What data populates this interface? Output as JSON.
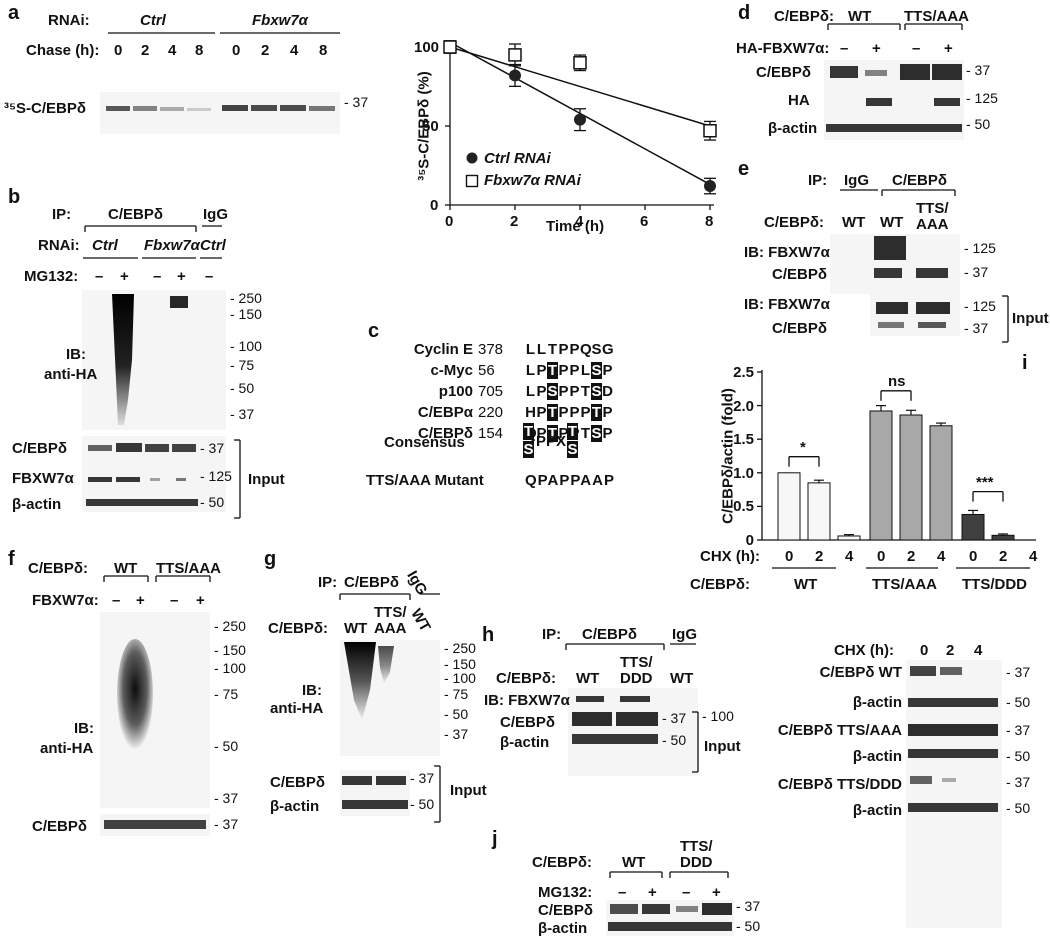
{
  "panel_a": {
    "label": "a",
    "rnai_label": "RNAi:",
    "ctrl": "Ctrl",
    "fbx": "Fbxw7α",
    "chase_label": "Chase (h):",
    "chase_times": [
      "0",
      "2",
      "4",
      "8",
      "0",
      "2",
      "4",
      "8"
    ],
    "row_label": "³⁵S-C/EBPδ",
    "mw": "- 37"
  },
  "chart_data": {
    "type": "line",
    "xlabel": "Time (h)",
    "ylabel": "³⁵S-C/EBPδ (%)",
    "xlim": [
      0,
      8
    ],
    "ylim": [
      0,
      100
    ],
    "x_ticks": [
      "0",
      "2",
      "4",
      "6",
      "8"
    ],
    "y_ticks": [
      "0",
      "50",
      "100"
    ],
    "legend": "bottom-right",
    "series": [
      {
        "name": "Ctrl RNAi",
        "marker": "filled-circle",
        "x": [
          0,
          2,
          4,
          8
        ],
        "y": [
          100,
          82,
          54,
          12
        ],
        "err": [
          2,
          5,
          5,
          3
        ]
      },
      {
        "name": "Fbxw7α RNAi",
        "marker": "open-square",
        "x": [
          0,
          2,
          4,
          8
        ],
        "y": [
          100,
          95,
          90,
          47
        ],
        "err": [
          2,
          5,
          3,
          4
        ]
      }
    ],
    "fit_lines": [
      {
        "series": "Ctrl RNAi",
        "from": [
          0,
          103
        ],
        "to": [
          8,
          13
        ]
      },
      {
        "series": "Fbxw7α RNAi",
        "from": [
          0,
          100
        ],
        "to": [
          8,
          50
        ]
      }
    ]
  },
  "panel_b": {
    "label": "b",
    "ip_label": "IP:",
    "ip_cebpd": "C/EBPδ",
    "ip_igg": "IgG",
    "rnai_label": "RNAi:",
    "ctrl": "Ctrl",
    "fbx": "Fbxw7α",
    "ctrl2": "Ctrl",
    "mg_label": "MG132:",
    "signs": [
      "–",
      "+",
      "–",
      "+",
      "–"
    ],
    "ib_label1": "IB:",
    "ib_label2": "anti-HA",
    "mws": [
      "- 250",
      "- 150",
      "- 100",
      "- 75",
      "- 50",
      "- 37"
    ],
    "input_rows": [
      "C/EBPδ",
      "FBXW7α",
      "β-actin"
    ],
    "input_mws": [
      "- 37",
      "- 125",
      "- 50"
    ],
    "input_label": "Input"
  },
  "panel_c": {
    "label": "c",
    "rows": [
      {
        "name": "Cyclin E",
        "pos": "378",
        "seq": [
          "L",
          "L",
          "T",
          "P",
          "P",
          "Q",
          "S",
          "G"
        ],
        "boxed": []
      },
      {
        "name": "c-Myc",
        "pos": "56",
        "seq": [
          "L",
          "P",
          "T",
          "P",
          "P",
          "L",
          "S",
          "P"
        ],
        "boxed": [
          2,
          6
        ]
      },
      {
        "name": "p100",
        "pos": "705",
        "seq": [
          "L",
          "P",
          "S",
          "P",
          "P",
          "T",
          "S",
          "D"
        ],
        "boxed": [
          2,
          6
        ]
      },
      {
        "name": "C/EBPα",
        "pos": "220",
        "seq": [
          "H",
          "P",
          "T",
          "P",
          "P",
          "P",
          "T",
          "P"
        ],
        "boxed": [
          2,
          6
        ]
      },
      {
        "name": "C/EBPδ",
        "pos": "154",
        "seq": [
          "Q",
          "P",
          "T",
          "P",
          "P",
          "T",
          "S",
          "P"
        ],
        "boxed": [
          2,
          6
        ]
      }
    ],
    "consensus_label": "Consensus",
    "consensus_top": [
      "T",
      "T"
    ],
    "consensus_bottom": [
      "S",
      "S"
    ],
    "consensus_mid": "PPX",
    "mutant_label": "TTS/AAA Mutant",
    "mutant_seq": "QPAPPAAP"
  },
  "panel_d": {
    "label": "d",
    "cebpd_label": "C/EBPδ:",
    "wt": "WT",
    "tts": "TTS/AAA",
    "ha_label": "HA-FBXW7α:",
    "signs": [
      "–",
      "+",
      "–",
      "+"
    ],
    "rows": [
      "C/EBPδ",
      "HA",
      "β-actin"
    ],
    "mws": [
      "- 37",
      "- 125",
      "- 50"
    ]
  },
  "panel_e": {
    "label": "e",
    "ip_label": "IP:",
    "igg": "IgG",
    "cebpd": "C/EBPδ",
    "cebpd_label": "C/EBPδ:",
    "lanes": [
      "WT",
      "WT"
    ],
    "tts1": "TTS/",
    "tts2": "AAA",
    "rows": [
      "IB: FBXW7α",
      "C/EBPδ",
      "IB: FBXW7α",
      "C/EBPδ"
    ],
    "mws": [
      "- 125",
      "- 37",
      "- 125",
      "- 37"
    ],
    "input_label": "Input"
  },
  "panel_i": {
    "label": "i",
    "ylabel": "C/EBPδ/actin (fold)",
    "y_ticks": [
      "0",
      "0.5",
      "1.0",
      "1.5",
      "2.0",
      "2.5"
    ],
    "cats": [
      "0",
      "2",
      "4",
      "0",
      "2",
      "4",
      "0",
      "2",
      "4"
    ],
    "values": [
      1.0,
      0.85,
      0.06,
      1.92,
      1.86,
      1.7,
      0.38,
      0.07,
      0.0
    ],
    "errors": [
      0,
      0.04,
      0.02,
      0.08,
      0.07,
      0.04,
      0.06,
      0.02,
      0
    ],
    "colors": [
      "#f7f7f7",
      "#f7f7f7",
      "#f7f7f7",
      "#a8a8a8",
      "#a8a8a8",
      "#a8a8a8",
      "#3f3f3f",
      "#3f3f3f",
      "#3f3f3f"
    ],
    "chx_label": "CHX (h):",
    "cebpd_label": "C/EBPδ:",
    "groups": [
      "WT",
      "TTS/AAA",
      "TTS/DDD"
    ],
    "sig": [
      "*",
      "ns",
      "***"
    ],
    "blot_chx_label": "CHX (h):",
    "blot_times": [
      "0",
      "2",
      "4"
    ],
    "blot_rows": [
      "C/EBPδ WT",
      "β-actin",
      "C/EBPδ TTS/AAA",
      "β-actin",
      "C/EBPδ TTS/DDD",
      "β-actin"
    ],
    "blot_mws": [
      "- 37",
      "- 50",
      "- 37",
      "- 50",
      "- 37",
      "- 50"
    ]
  },
  "panel_f": {
    "label": "f",
    "cebpd_label": "C/EBPδ:",
    "wt": "WT",
    "tts": "TTS/AAA",
    "fbx_label": "FBXW7α:",
    "signs": [
      "–",
      "+",
      "–",
      "+"
    ],
    "ib1": "IB:",
    "ib2": "anti-HA",
    "mws": [
      "- 250",
      "- 150",
      "- 100",
      "- 75",
      "- 50",
      "- 37"
    ],
    "row": "C/EBPδ",
    "row_mw": "- 37"
  },
  "panel_g": {
    "label": "g",
    "ip_label": "IP:",
    "ip_cebpd": "C/EBPδ",
    "igg": "IgG",
    "cebpd_label": "C/EBPδ:",
    "wt": "WT",
    "tts1": "TTS/",
    "tts2": "AAA",
    "wt_rot": "WT",
    "ib1": "IB:",
    "ib2": "anti-HA",
    "mws": [
      "- 250",
      "- 150",
      "- 100",
      "- 75",
      "- 50",
      "- 37"
    ],
    "rows": [
      "C/EBPδ",
      "β-actin"
    ],
    "row_mws": [
      "- 37",
      "- 50"
    ],
    "input_label": "Input"
  },
  "panel_h": {
    "label": "h",
    "ip_label": "IP:",
    "ip_cebpd": "C/EBPδ",
    "igg": "IgG",
    "cebpd_label": "C/EBPδ:",
    "wt": "WT",
    "tts1": "TTS/",
    "tts2": "DDD",
    "wt2": "WT",
    "ib_row": "IB: FBXW7α",
    "ib_mw": "- 100",
    "rows": [
      "C/EBPδ",
      "β-actin"
    ],
    "row_mws": [
      "- 37",
      "- 50"
    ],
    "input_label": "Input"
  },
  "panel_j": {
    "label": "j",
    "cebpd_label": "C/EBPδ:",
    "wt": "WT",
    "tts1": "TTS/",
    "tts2": "DDD",
    "mg_label": "MG132:",
    "signs": [
      "–",
      "+",
      "–",
      "+"
    ],
    "rows": [
      "C/EBPδ",
      "β-actin"
    ],
    "mws": [
      "- 37",
      "- 50"
    ]
  }
}
